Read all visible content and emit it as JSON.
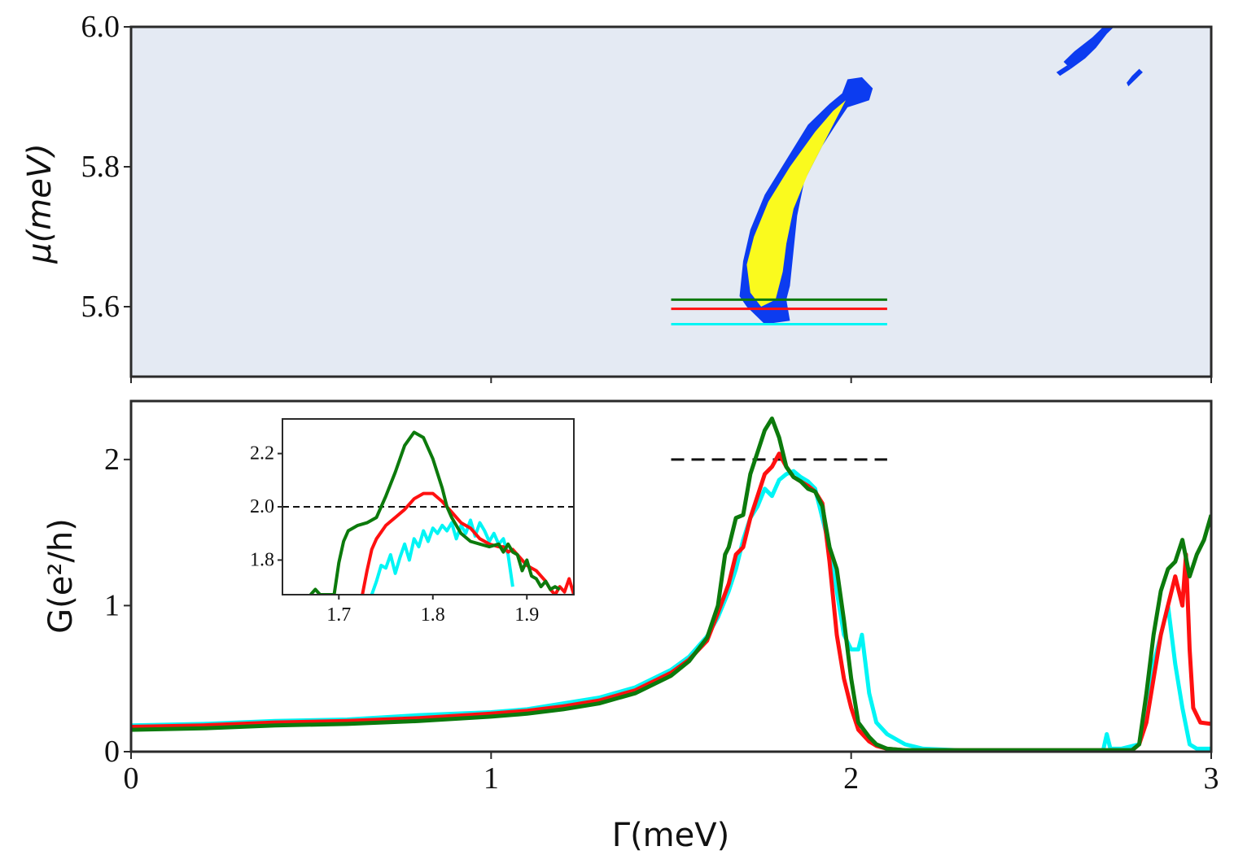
{
  "colors": {
    "cyan": "#00f5f5",
    "red": "#ff1010",
    "green": "#0c7a0c",
    "map_bg": "#e4eaf3",
    "map_blue": "#0c3cf0",
    "map_yellow": "#fafa1e",
    "axis": "#2a2a2a"
  },
  "chart_data": [
    {
      "type": "heatmap",
      "title": "",
      "xlabel": "",
      "ylabel": "μ(meV)",
      "xlim": [
        0,
        3
      ],
      "ylim": [
        5.5,
        6.0
      ],
      "yticks": [
        "5.6",
        "5.8",
        "6.0"
      ],
      "ytick_values": [
        5.6,
        5.8,
        6.0
      ],
      "grid": false,
      "regions": [
        {
          "name": "yellow",
          "level": "high",
          "points": [
            [
              1.72,
              5.62
            ],
            [
              1.71,
              5.66
            ],
            [
              1.73,
              5.7
            ],
            [
              1.77,
              5.75
            ],
            [
              1.83,
              5.8
            ],
            [
              1.9,
              5.85
            ],
            [
              1.95,
              5.88
            ],
            [
              1.985,
              5.895
            ],
            [
              1.965,
              5.875
            ],
            [
              1.93,
              5.84
            ],
            [
              1.88,
              5.79
            ],
            [
              1.84,
              5.74
            ],
            [
              1.82,
              5.69
            ],
            [
              1.81,
              5.65
            ],
            [
              1.79,
              5.61
            ],
            [
              1.75,
              5.6
            ]
          ]
        },
        {
          "name": "blue",
          "level": "edge",
          "points": [
            [
              1.69,
              5.615
            ],
            [
              1.7,
              5.665
            ],
            [
              1.72,
              5.71
            ],
            [
              1.76,
              5.76
            ],
            [
              1.82,
              5.81
            ],
            [
              1.88,
              5.86
            ],
            [
              1.94,
              5.89
            ],
            [
              1.975,
              5.905
            ],
            [
              1.99,
              5.925
            ],
            [
              2.03,
              5.928
            ],
            [
              2.06,
              5.912
            ],
            [
              2.05,
              5.895
            ],
            [
              2.02,
              5.89
            ],
            [
              1.99,
              5.885
            ],
            [
              1.96,
              5.862
            ],
            [
              1.92,
              5.83
            ],
            [
              1.87,
              5.78
            ],
            [
              1.85,
              5.73
            ],
            [
              1.84,
              5.68
            ],
            [
              1.83,
              5.63
            ],
            [
              1.82,
              5.61
            ],
            [
              1.83,
              5.58
            ],
            [
              1.76,
              5.575
            ],
            [
              1.74,
              5.585
            ],
            [
              1.71,
              5.6
            ]
          ]
        },
        {
          "name": "blue",
          "level": "edge",
          "points": [
            [
              2.61,
              5.94
            ],
            [
              2.65,
              5.955
            ],
            [
              2.68,
              5.97
            ],
            [
              2.71,
              5.99
            ],
            [
              2.73,
              6.0
            ],
            [
              2.7,
              6.0
            ],
            [
              2.67,
              5.985
            ],
            [
              2.62,
              5.965
            ],
            [
              2.59,
              5.95
            ]
          ]
        },
        {
          "name": "blue",
          "level": "edge",
          "points": [
            [
              2.58,
              5.93
            ],
            [
              2.61,
              5.94
            ],
            [
              2.6,
              5.945
            ],
            [
              2.57,
              5.935
            ]
          ]
        },
        {
          "name": "blue",
          "level": "edge",
          "points": [
            [
              2.77,
              5.915
            ],
            [
              2.79,
              5.925
            ],
            [
              2.81,
              5.935
            ],
            [
              2.8,
              5.94
            ],
            [
              2.78,
              5.93
            ],
            [
              2.765,
              5.92
            ]
          ]
        }
      ],
      "cuts": [
        {
          "name": "green",
          "y": 5.61,
          "x": [
            1.5,
            2.1
          ]
        },
        {
          "name": "red",
          "y": 5.597,
          "x": [
            1.5,
            2.1
          ]
        },
        {
          "name": "cyan",
          "y": 5.575,
          "x": [
            1.5,
            2.1
          ]
        }
      ]
    },
    {
      "type": "line",
      "title": "",
      "xlabel": "Γ(meV)",
      "ylabel": "G(e²/h)",
      "xlim": [
        0,
        3
      ],
      "ylim": [
        0,
        2.4
      ],
      "xticks": [
        "0",
        "1",
        "2",
        "3"
      ],
      "xtick_values": [
        0,
        1,
        2,
        3
      ],
      "yticks": [
        "0",
        "1",
        "2"
      ],
      "ytick_values": [
        0,
        1,
        2
      ],
      "grid": false,
      "reference_line": {
        "y": 2.0,
        "x": [
          1.5,
          2.1
        ],
        "style": "dashed"
      },
      "series": [
        {
          "name": "cyan",
          "x": [
            0,
            0.2,
            0.4,
            0.6,
            0.8,
            1.0,
            1.1,
            1.2,
            1.3,
            1.4,
            1.5,
            1.55,
            1.6,
            1.63,
            1.66,
            1.68,
            1.7,
            1.72,
            1.74,
            1.76,
            1.78,
            1.8,
            1.82,
            1.84,
            1.86,
            1.88,
            1.9,
            1.92,
            1.94,
            1.96,
            1.98,
            2.0,
            2.02,
            2.03,
            2.05,
            2.07,
            2.1,
            2.15,
            2.2,
            2.3,
            2.4,
            2.5,
            2.6,
            2.7,
            2.71,
            2.72,
            2.75,
            2.8,
            2.84,
            2.86,
            2.88,
            2.9,
            2.92,
            2.94,
            2.96,
            3.0
          ],
          "y": [
            0.18,
            0.19,
            0.21,
            0.22,
            0.25,
            0.27,
            0.29,
            0.33,
            0.37,
            0.44,
            0.56,
            0.65,
            0.79,
            0.92,
            1.1,
            1.25,
            1.45,
            1.6,
            1.68,
            1.8,
            1.75,
            1.86,
            1.9,
            1.92,
            1.88,
            1.85,
            1.8,
            1.6,
            1.4,
            1.1,
            0.8,
            0.7,
            0.7,
            0.8,
            0.4,
            0.2,
            0.12,
            0.05,
            0.02,
            0.01,
            0.01,
            0.01,
            0.01,
            0.01,
            0.12,
            0.02,
            0.02,
            0.05,
            0.6,
            0.8,
            1.0,
            0.6,
            0.3,
            0.05,
            0.02,
            0.02
          ]
        },
        {
          "name": "red",
          "x": [
            0,
            0.2,
            0.4,
            0.6,
            0.8,
            1.0,
            1.1,
            1.2,
            1.3,
            1.4,
            1.5,
            1.55,
            1.6,
            1.63,
            1.66,
            1.68,
            1.7,
            1.72,
            1.74,
            1.76,
            1.78,
            1.8,
            1.82,
            1.84,
            1.86,
            1.88,
            1.9,
            1.92,
            1.94,
            1.96,
            1.98,
            2.0,
            2.02,
            2.05,
            2.07,
            2.1,
            2.15,
            2.2,
            2.3,
            2.4,
            2.5,
            2.6,
            2.7,
            2.78,
            2.8,
            2.82,
            2.84,
            2.86,
            2.88,
            2.9,
            2.92,
            2.93,
            2.94,
            2.95,
            2.97,
            3.0
          ],
          "y": [
            0.17,
            0.18,
            0.2,
            0.21,
            0.23,
            0.26,
            0.28,
            0.31,
            0.35,
            0.42,
            0.54,
            0.63,
            0.76,
            0.95,
            1.15,
            1.35,
            1.4,
            1.6,
            1.75,
            1.9,
            1.95,
            2.04,
            1.95,
            1.88,
            1.85,
            1.82,
            1.78,
            1.7,
            1.3,
            0.8,
            0.5,
            0.3,
            0.15,
            0.07,
            0.04,
            0.02,
            0.01,
            0.01,
            0.01,
            0.01,
            0.01,
            0.01,
            0.01,
            0.01,
            0.05,
            0.2,
            0.5,
            0.8,
            1.0,
            1.2,
            1.0,
            1.35,
            0.7,
            0.3,
            0.2,
            0.19
          ]
        },
        {
          "name": "green",
          "x": [
            0,
            0.2,
            0.4,
            0.6,
            0.8,
            1.0,
            1.1,
            1.2,
            1.3,
            1.4,
            1.5,
            1.55,
            1.6,
            1.63,
            1.65,
            1.66,
            1.68,
            1.7,
            1.72,
            1.74,
            1.76,
            1.78,
            1.8,
            1.82,
            1.84,
            1.86,
            1.88,
            1.9,
            1.92,
            1.94,
            1.96,
            1.98,
            2.0,
            2.02,
            2.05,
            2.07,
            2.1,
            2.15,
            2.2,
            2.3,
            2.4,
            2.5,
            2.6,
            2.7,
            2.78,
            2.8,
            2.82,
            2.84,
            2.86,
            2.88,
            2.9,
            2.92,
            2.94,
            2.96,
            2.98,
            3.0
          ],
          "y": [
            0.15,
            0.16,
            0.18,
            0.19,
            0.21,
            0.24,
            0.26,
            0.29,
            0.33,
            0.4,
            0.52,
            0.62,
            0.78,
            1.0,
            1.35,
            1.4,
            1.6,
            1.62,
            1.9,
            2.05,
            2.2,
            2.28,
            2.15,
            1.95,
            1.88,
            1.85,
            1.8,
            1.78,
            1.68,
            1.4,
            1.25,
            0.9,
            0.5,
            0.2,
            0.1,
            0.05,
            0.02,
            0.01,
            0.01,
            0.01,
            0.01,
            0.01,
            0.01,
            0.01,
            0.01,
            0.05,
            0.4,
            0.8,
            1.1,
            1.25,
            1.3,
            1.45,
            1.2,
            1.35,
            1.45,
            1.62
          ]
        }
      ]
    },
    {
      "type": "line",
      "title": "inset",
      "xlabel": "",
      "ylabel": "",
      "xlim": [
        1.64,
        1.95
      ],
      "ylim": [
        1.67,
        2.33
      ],
      "xticks": [
        "1.7",
        "1.8",
        "1.9"
      ],
      "xtick_values": [
        1.7,
        1.8,
        1.9
      ],
      "yticks": [
        "1.8",
        "2.0",
        "2.2"
      ],
      "ytick_values": [
        1.8,
        2.0,
        2.2
      ],
      "reference_line": {
        "y": 2.0,
        "style": "dashed"
      },
      "series": [
        {
          "name": "cyan",
          "x": [
            1.735,
            1.74,
            1.745,
            1.75,
            1.755,
            1.76,
            1.765,
            1.77,
            1.775,
            1.78,
            1.785,
            1.79,
            1.795,
            1.8,
            1.805,
            1.81,
            1.815,
            1.82,
            1.825,
            1.83,
            1.835,
            1.84,
            1.845,
            1.85,
            1.855,
            1.86,
            1.865,
            1.87,
            1.875,
            1.88,
            1.885
          ],
          "y": [
            1.67,
            1.72,
            1.78,
            1.77,
            1.82,
            1.75,
            1.81,
            1.86,
            1.8,
            1.88,
            1.85,
            1.91,
            1.87,
            1.92,
            1.9,
            1.93,
            1.91,
            1.94,
            1.88,
            1.93,
            1.9,
            1.95,
            1.89,
            1.94,
            1.91,
            1.87,
            1.9,
            1.86,
            1.88,
            1.82,
            1.7
          ]
        },
        {
          "name": "red",
          "x": [
            1.725,
            1.73,
            1.735,
            1.74,
            1.75,
            1.76,
            1.77,
            1.78,
            1.79,
            1.8,
            1.81,
            1.82,
            1.83,
            1.84,
            1.85,
            1.86,
            1.87,
            1.875,
            1.88,
            1.885,
            1.89,
            1.895,
            1.9,
            1.905,
            1.91,
            1.915,
            1.92,
            1.925,
            1.93,
            1.935,
            1.94,
            1.945,
            1.95
          ],
          "y": [
            1.67,
            1.76,
            1.84,
            1.88,
            1.93,
            1.96,
            1.99,
            2.03,
            2.05,
            2.05,
            2.02,
            1.98,
            1.94,
            1.92,
            1.88,
            1.86,
            1.85,
            1.85,
            1.83,
            1.84,
            1.82,
            1.8,
            1.78,
            1.77,
            1.76,
            1.74,
            1.72,
            1.69,
            1.67,
            1.7,
            1.68,
            1.73,
            1.67
          ]
        },
        {
          "name": "green",
          "x": [
            1.67,
            1.675,
            1.68,
            1.695,
            1.7,
            1.705,
            1.71,
            1.72,
            1.73,
            1.74,
            1.75,
            1.76,
            1.77,
            1.78,
            1.79,
            1.8,
            1.81,
            1.815,
            1.82,
            1.83,
            1.84,
            1.85,
            1.86,
            1.87,
            1.875,
            1.88,
            1.885,
            1.89,
            1.895,
            1.9,
            1.905,
            1.91,
            1.915,
            1.92,
            1.925,
            1.93,
            1.935
          ],
          "y": [
            1.67,
            1.69,
            1.67,
            1.67,
            1.79,
            1.87,
            1.91,
            1.93,
            1.94,
            1.96,
            2.04,
            2.13,
            2.23,
            2.28,
            2.26,
            2.18,
            2.07,
            2.0,
            1.96,
            1.9,
            1.87,
            1.86,
            1.85,
            1.86,
            1.83,
            1.86,
            1.83,
            1.82,
            1.76,
            1.8,
            1.74,
            1.73,
            1.7,
            1.72,
            1.69,
            1.7,
            1.69
          ]
        }
      ]
    }
  ]
}
